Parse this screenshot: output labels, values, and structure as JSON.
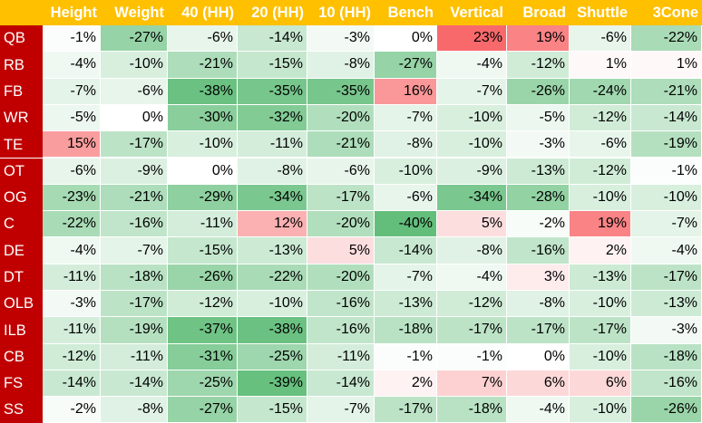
{
  "chart_data": {
    "type": "table",
    "columns": [
      "Height",
      "Weight",
      "40 (HH)",
      "20 (HH)",
      "10 (HH)",
      "Bench",
      "Vertical",
      "Broad",
      "Shuttle",
      "3Cone"
    ],
    "rows": [
      {
        "label": "QB",
        "values": [
          -1,
          -27,
          -6,
          -14,
          -3,
          0,
          23,
          19,
          -6,
          -22
        ]
      },
      {
        "label": "RB",
        "values": [
          -4,
          -10,
          -21,
          -15,
          -8,
          -27,
          -4,
          -12,
          1,
          1
        ]
      },
      {
        "label": "FB",
        "values": [
          -7,
          -6,
          -38,
          -35,
          -35,
          16,
          -7,
          -26,
          -24,
          -21
        ]
      },
      {
        "label": "WR",
        "values": [
          -5,
          0,
          -30,
          -32,
          -20,
          -7,
          -10,
          -5,
          -12,
          -14
        ]
      },
      {
        "label": "TE",
        "values": [
          15,
          -17,
          -10,
          -11,
          -21,
          -8,
          -10,
          -3,
          -6,
          -19
        ]
      },
      {
        "label": "OT",
        "values": [
          -6,
          -9,
          0,
          -8,
          -6,
          -10,
          -9,
          -13,
          -12,
          -1
        ]
      },
      {
        "label": "OG",
        "values": [
          -23,
          -21,
          -29,
          -34,
          -17,
          -6,
          -34,
          -28,
          -10,
          -10
        ]
      },
      {
        "label": "C",
        "values": [
          -22,
          -16,
          -11,
          12,
          -20,
          -40,
          5,
          -2,
          19,
          -7
        ]
      },
      {
        "label": "DE",
        "values": [
          -4,
          -7,
          -15,
          -13,
          5,
          -14,
          -8,
          -16,
          2,
          -4
        ]
      },
      {
        "label": "DT",
        "values": [
          -11,
          -18,
          -26,
          -22,
          -20,
          -7,
          -4,
          3,
          -13,
          -17
        ]
      },
      {
        "label": "OLB",
        "values": [
          -3,
          -17,
          -12,
          -10,
          -16,
          -13,
          -12,
          -8,
          -10,
          -13
        ]
      },
      {
        "label": "ILB",
        "values": [
          -11,
          -19,
          -37,
          -38,
          -16,
          -18,
          -17,
          -17,
          -17,
          -3
        ]
      },
      {
        "label": "CB",
        "values": [
          -12,
          -11,
          -31,
          -25,
          -11,
          -1,
          -1,
          0,
          -10,
          -18
        ]
      },
      {
        "label": "FS",
        "values": [
          -14,
          -14,
          -25,
          -39,
          -14,
          2,
          7,
          6,
          6,
          -16
        ]
      },
      {
        "label": "SS",
        "values": [
          -2,
          -8,
          -27,
          -15,
          -7,
          -17,
          -18,
          -4,
          -10,
          -26
        ]
      }
    ],
    "value_suffix": "%",
    "color_scale": {
      "negative": "#63be7b",
      "midpoint": "#ffffff",
      "positive": "#f8696b"
    }
  }
}
